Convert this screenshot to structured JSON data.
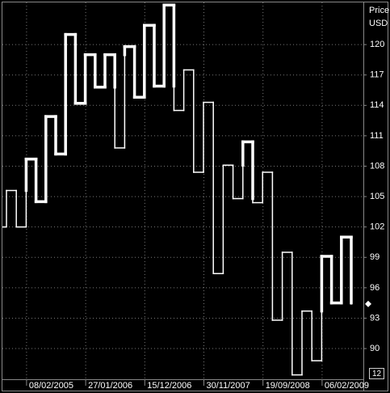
{
  "chart_data": {
    "type": "kagi",
    "axis_label": [
      "Price",
      "USD"
    ],
    "values": [
      102,
      105.6,
      102,
      108.7,
      104.5,
      112.9,
      109.2,
      121,
      114.2,
      119,
      115.8,
      119,
      109.8,
      119.8,
      114.8,
      121.9,
      115.9,
      123.9,
      113.5,
      117.5,
      107.4,
      114.3,
      97.4,
      108.1,
      104.8,
      110.4,
      104.4,
      107.4,
      92.8,
      99.5,
      87.4,
      93.7,
      88.8,
      99.1,
      94.5,
      101,
      94.4
    ],
    "color": "#ffffff",
    "ylim": [
      87.05,
      124.16
    ],
    "yticks": [
      90,
      93,
      96,
      99,
      102,
      105,
      108,
      111,
      114,
      117,
      120
    ],
    "xticks": [
      {
        "value": 2,
        "label": "08/02/2005"
      },
      {
        "value": 8,
        "label": "27/01/2006"
      },
      {
        "value": 14,
        "label": "15/12/2006"
      },
      {
        "value": 20,
        "label": "30/11/2007"
      },
      {
        "value": 26,
        "label": "19/09/2008"
      },
      {
        "value": 32,
        "label": "06/02/2009"
      }
    ],
    "badge": "12",
    "grid": true
  }
}
